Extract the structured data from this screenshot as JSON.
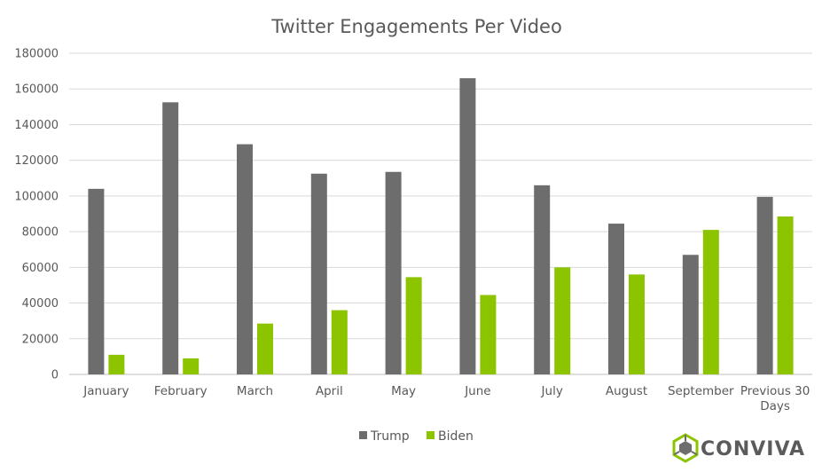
{
  "chart_data": {
    "type": "bar",
    "title": "Twitter Engagements Per Video",
    "xlabel": "",
    "ylabel": "",
    "ylim": [
      0,
      180000
    ],
    "yticks": [
      0,
      20000,
      40000,
      60000,
      80000,
      100000,
      120000,
      140000,
      160000,
      180000
    ],
    "grid": true,
    "legend_position": "bottom",
    "categories": [
      "January",
      "February",
      "March",
      "April",
      "May",
      "June",
      "July",
      "August",
      "September",
      "Previous 30 Days"
    ],
    "series": [
      {
        "name": "Trump",
        "color": "#6d6d6d",
        "values": [
          104000,
          152500,
          129000,
          112500,
          113500,
          166000,
          106000,
          84500,
          67000,
          99500
        ]
      },
      {
        "name": "Biden",
        "color": "#8cc400",
        "values": [
          11000,
          9000,
          28500,
          36000,
          54500,
          44500,
          60000,
          56000,
          81000,
          88500
        ]
      }
    ]
  },
  "brand": {
    "name": "CONVIVA",
    "logo_icon": "conviva-logo-icon",
    "colors": {
      "text": "#5b5b5b",
      "logo_green": "#8cc400",
      "logo_gray": "#6d6d6d"
    }
  }
}
